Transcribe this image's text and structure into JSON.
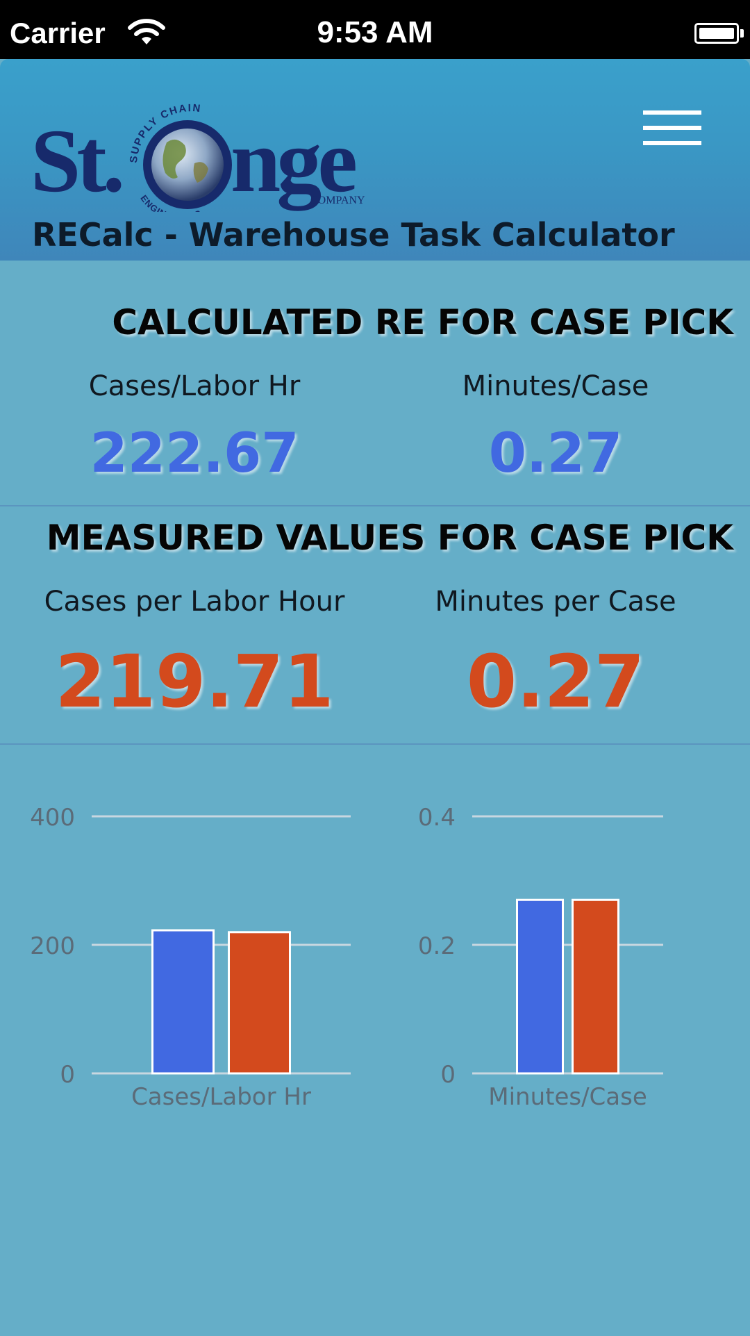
{
  "status_bar": {
    "carrier": "Carrier",
    "time": "9:53 AM"
  },
  "header": {
    "logo": {
      "text": "St.Onge",
      "arc_top": "SUPPLY CHAIN",
      "arc_bottom": "ENGINEERING",
      "suffix": "COMPANY"
    },
    "title": "RECalc - Warehouse Task Calculator"
  },
  "calculated": {
    "title": "CALCULATED RE FOR CASE PICK",
    "metrics": [
      {
        "label": "Cases/Labor Hr",
        "value": "222.67"
      },
      {
        "label": "Minutes/Case",
        "value": "0.27"
      }
    ]
  },
  "measured": {
    "title": "MEASURED VALUES FOR CASE PICK",
    "metrics": [
      {
        "label": "Cases per Labor Hour",
        "value": "219.71"
      },
      {
        "label": "Minutes per Case",
        "value": "0.27"
      }
    ]
  },
  "colors": {
    "calculated": "#4169e1",
    "measured": "#d34a1d",
    "background": "#65aec8"
  },
  "chart_data": [
    {
      "type": "bar",
      "categories": [
        "Cases/Labor Hr"
      ],
      "series": [
        {
          "values": [
            222.67
          ]
        },
        {
          "values": [
            219.71
          ]
        }
      ],
      "ylim": [
        0,
        400
      ],
      "yticks": [
        "0",
        "200",
        "400"
      ],
      "grid": true
    },
    {
      "type": "bar",
      "categories": [
        "Minutes/Case"
      ],
      "series": [
        {
          "values": [
            0.27
          ]
        },
        {
          "values": [
            0.27
          ]
        }
      ],
      "ylim": [
        0,
        0.4
      ],
      "yticks": [
        "0",
        "0.2",
        "0.4"
      ],
      "grid": true
    }
  ]
}
